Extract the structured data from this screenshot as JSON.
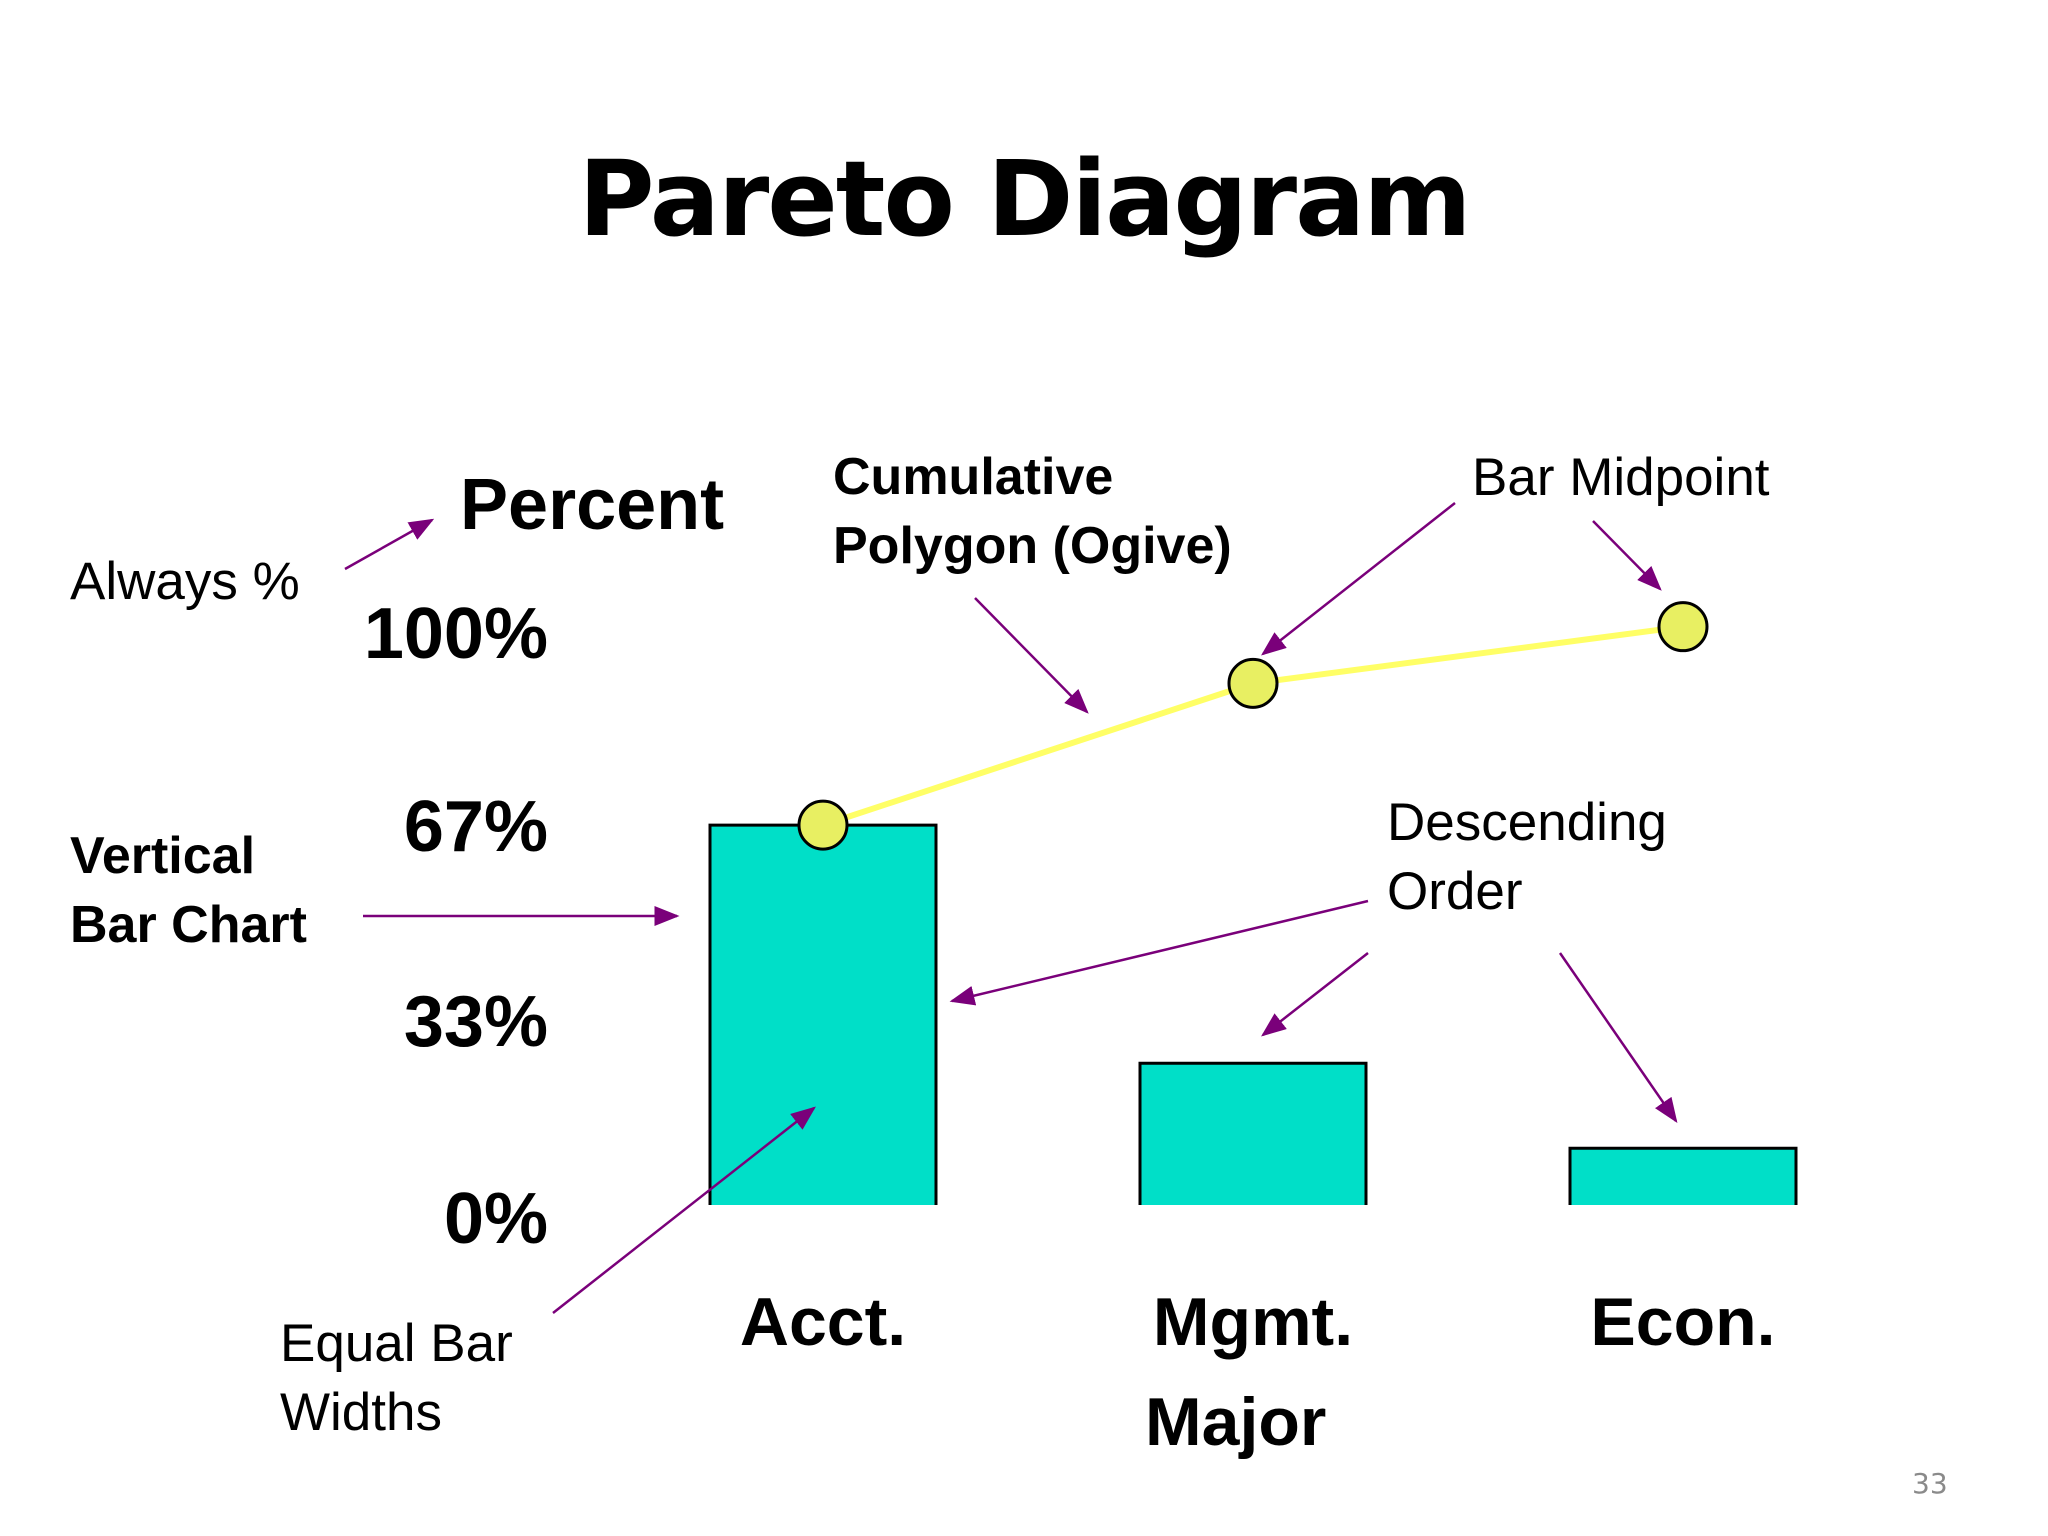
{
  "slide": {
    "title": "Pareto Diagram",
    "page_number": "33"
  },
  "annotations": {
    "always_pct": "Always %",
    "cumulative_line1": "Cumulative",
    "cumulative_line2": "Polygon (Ogive)",
    "bar_midpoint": "Bar Midpoint",
    "vertical_line1": "Vertical",
    "vertical_line2": "Bar Chart",
    "descending_line1": "Descending",
    "descending_line2": "Order",
    "equal_line1": "Equal Bar",
    "equal_line2": "Widths"
  },
  "colors": {
    "bar_fill": "#00dfc8",
    "bar_stroke": "#000000",
    "ogive_line": "#ffff66",
    "ogive_marker": "#e8ef62",
    "arrow": "#7a007a"
  },
  "chart_data": {
    "type": "bar",
    "ylabel": "Percent",
    "xlabel": "Major",
    "yticks": [
      "100%",
      "67%",
      "33%",
      "0%"
    ],
    "ylim": [
      0,
      100
    ],
    "categories": [
      "Acct.",
      "Mgmt.",
      "Econ."
    ],
    "series": [
      {
        "values": [
          67,
          25,
          10
        ]
      },
      {
        "type": "line",
        "values": [
          67,
          92,
          102
        ]
      }
    ],
    "grid": false,
    "legend": "none"
  }
}
